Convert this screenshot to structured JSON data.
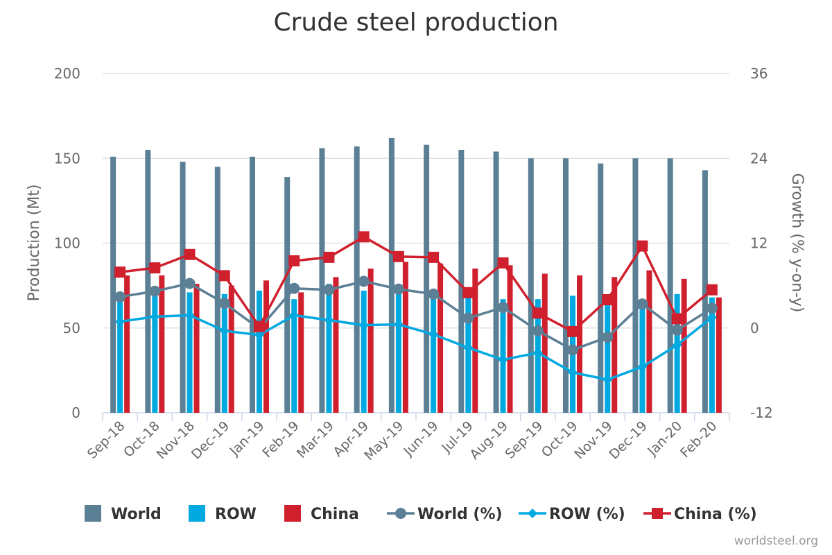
{
  "chart_data": {
    "type": "bar",
    "title": "Crude steel production",
    "categories": [
      "Sep-18",
      "Oct-18",
      "Nov-18",
      "Dec-19",
      "Jan-19",
      "Feb-19",
      "Mar-19",
      "Apr-19",
      "May-19",
      "Jun-19",
      "Jul-19",
      "Aug-19",
      "Sep-19",
      "Oct-19",
      "Nov-19",
      "Dec-19",
      "Jan-20",
      "Feb-20"
    ],
    "ylabel_left": "Production (Mt)",
    "ylabel_right": "Growth (% y-on-y)",
    "ylim_left": [
      0,
      200
    ],
    "ylim_right": [
      -12,
      36
    ],
    "yticks_left": [
      0,
      50,
      100,
      150,
      200
    ],
    "yticks_right": [
      -12,
      0,
      12,
      24,
      36
    ],
    "grid": true,
    "legend_position": "bottom",
    "series": [
      {
        "name": "World",
        "kind": "bar",
        "axis": "left",
        "color": "#5b7f95",
        "values": [
          151,
          155,
          148,
          145,
          151,
          139,
          156,
          157,
          162,
          158,
          155,
          154,
          150,
          150,
          147,
          150,
          150,
          143
        ]
      },
      {
        "name": "ROW",
        "kind": "bar",
        "axis": "left",
        "color": "#00a9e0",
        "values": [
          70,
          73,
          71,
          70,
          72,
          67,
          76,
          72,
          73,
          71,
          70,
          67,
          67,
          69,
          64,
          66,
          70,
          68
        ]
      },
      {
        "name": "China",
        "kind": "bar",
        "axis": "left",
        "color": "#d0202e",
        "values": [
          81,
          81,
          76,
          75,
          78,
          71,
          80,
          85,
          89,
          88,
          85,
          87,
          82,
          81,
          80,
          84,
          79,
          68
        ]
      },
      {
        "name": "World (%)",
        "kind": "line",
        "axis": "right",
        "color": "#5b7f95",
        "marker": "circle",
        "values": [
          4.4,
          5.2,
          6.3,
          3.5,
          -0.1,
          5.6,
          5.4,
          6.6,
          5.5,
          4.8,
          1.4,
          2.9,
          -0.4,
          -3.1,
          -1.3,
          3.4,
          -0.3,
          2.8
        ]
      },
      {
        "name": "ROW (%)",
        "kind": "line",
        "axis": "right",
        "color": "#00a9e0",
        "marker": "diamond",
        "values": [
          0.9,
          1.6,
          1.8,
          -0.4,
          -1.0,
          1.8,
          1.1,
          0.4,
          0.5,
          -0.9,
          -2.8,
          -4.5,
          -3.5,
          -6.3,
          -7.3,
          -5.5,
          -2.4,
          1.5
        ]
      },
      {
        "name": "China (%)",
        "kind": "line",
        "axis": "right",
        "color": "#d0202e",
        "marker": "square",
        "values": [
          7.9,
          8.5,
          10.4,
          7.4,
          0.2,
          9.5,
          10.0,
          12.9,
          10.1,
          10.0,
          5.0,
          9.2,
          2.1,
          -0.5,
          4.0,
          11.6,
          1.3,
          5.4
        ]
      }
    ]
  },
  "credit": "worldsteel.org"
}
